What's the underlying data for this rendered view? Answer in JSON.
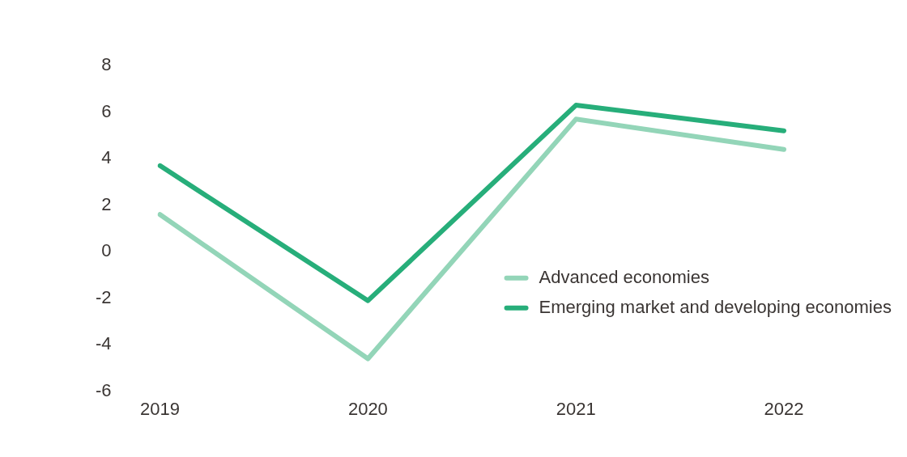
{
  "chart_data": {
    "type": "line",
    "categories": [
      "2019",
      "2020",
      "2021",
      "2022"
    ],
    "series": [
      {
        "name": "Advanced economies",
        "color": "#93d5b8",
        "values": [
          1.6,
          -4.6,
          5.7,
          4.4
        ]
      },
      {
        "name": "Emerging market and developing economies",
        "color": "#27ae7a",
        "values": [
          3.7,
          -2.1,
          6.3,
          5.2
        ]
      }
    ],
    "ylim": [
      -6,
      8
    ],
    "yticks": [
      -6,
      -4,
      -2,
      0,
      2,
      4,
      6,
      8
    ],
    "grid": false,
    "legend": "bottom right",
    "marker": "none",
    "line_style": "solid"
  }
}
